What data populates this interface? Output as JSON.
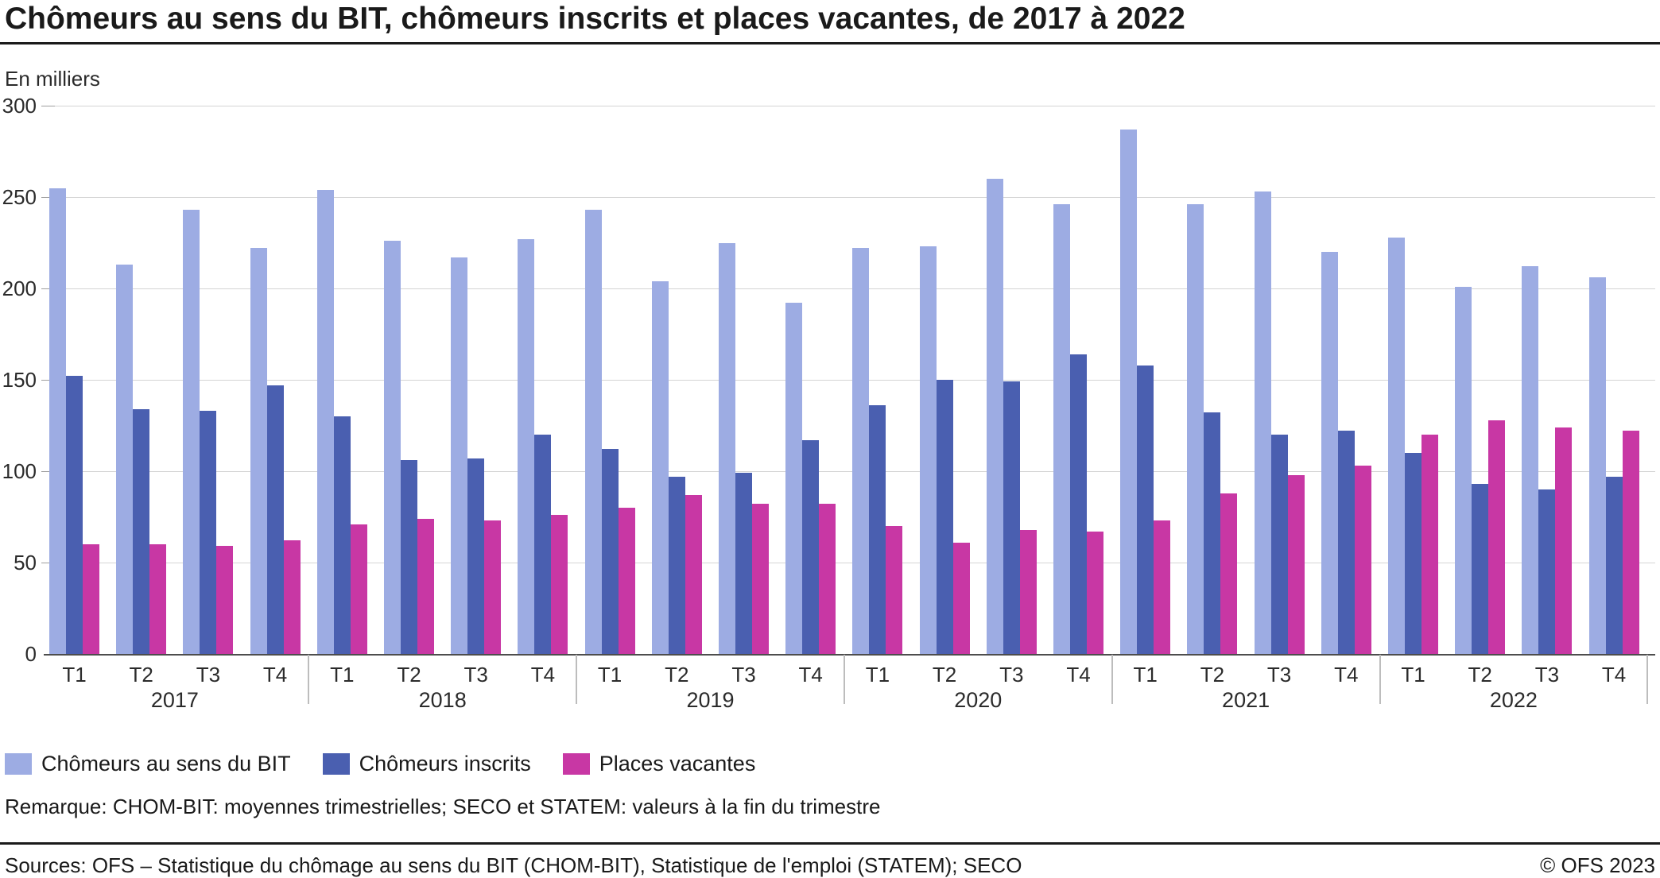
{
  "title": "Chômeurs au sens du BIT, chômeurs inscrits et places vacantes, de 2017 à 2022",
  "unit_label": "En milliers",
  "chart_data": {
    "type": "bar",
    "years": [
      "2017",
      "2018",
      "2019",
      "2020",
      "2021",
      "2022"
    ],
    "quarter_labels": [
      "T1",
      "T2",
      "T3",
      "T4"
    ],
    "categories": [
      "2017 T1",
      "2017 T2",
      "2017 T3",
      "2017 T4",
      "2018 T1",
      "2018 T2",
      "2018 T3",
      "2018 T4",
      "2019 T1",
      "2019 T2",
      "2019 T3",
      "2019 T4",
      "2020 T1",
      "2020 T2",
      "2020 T3",
      "2020 T4",
      "2021 T1",
      "2021 T2",
      "2021 T3",
      "2021 T4",
      "2022 T1",
      "2022 T2",
      "2022 T3",
      "2022 T4"
    ],
    "series": [
      {
        "name": "Chômeurs au sens du BIT",
        "color": "#9DACE3",
        "values": [
          255,
          213,
          243,
          222,
          254,
          226,
          217,
          227,
          243,
          204,
          225,
          192,
          222,
          223,
          260,
          246,
          287,
          246,
          253,
          220,
          228,
          201,
          212,
          206
        ]
      },
      {
        "name": "Chômeurs inscrits",
        "color": "#4A5FB0",
        "values": [
          152,
          134,
          133,
          147,
          130,
          106,
          107,
          120,
          112,
          97,
          99,
          117,
          136,
          150,
          149,
          164,
          158,
          132,
          120,
          122,
          110,
          93,
          90,
          97
        ]
      },
      {
        "name": "Places vacantes",
        "color": "#C837A4",
        "values": [
          60,
          60,
          59,
          62,
          71,
          74,
          73,
          76,
          80,
          87,
          82,
          82,
          70,
          61,
          68,
          67,
          73,
          88,
          98,
          103,
          120,
          128,
          124,
          122
        ]
      }
    ],
    "ylabel": "En milliers",
    "ylim": [
      0,
      300
    ],
    "yticks": [
      0,
      50,
      100,
      150,
      200,
      250,
      300
    ],
    "grid": true,
    "legend_position": "bottom"
  },
  "remark": "Remarque: CHOM-BIT: moyennes trimestrielles; SECO et STATEM: valeurs à la fin du trimestre",
  "footer": {
    "sources": "Sources: OFS – Statistique du chômage au sens du BIT (CHOM-BIT), Statistique de l'emploi (STATEM); SECO",
    "copyright": "© OFS 2023"
  }
}
